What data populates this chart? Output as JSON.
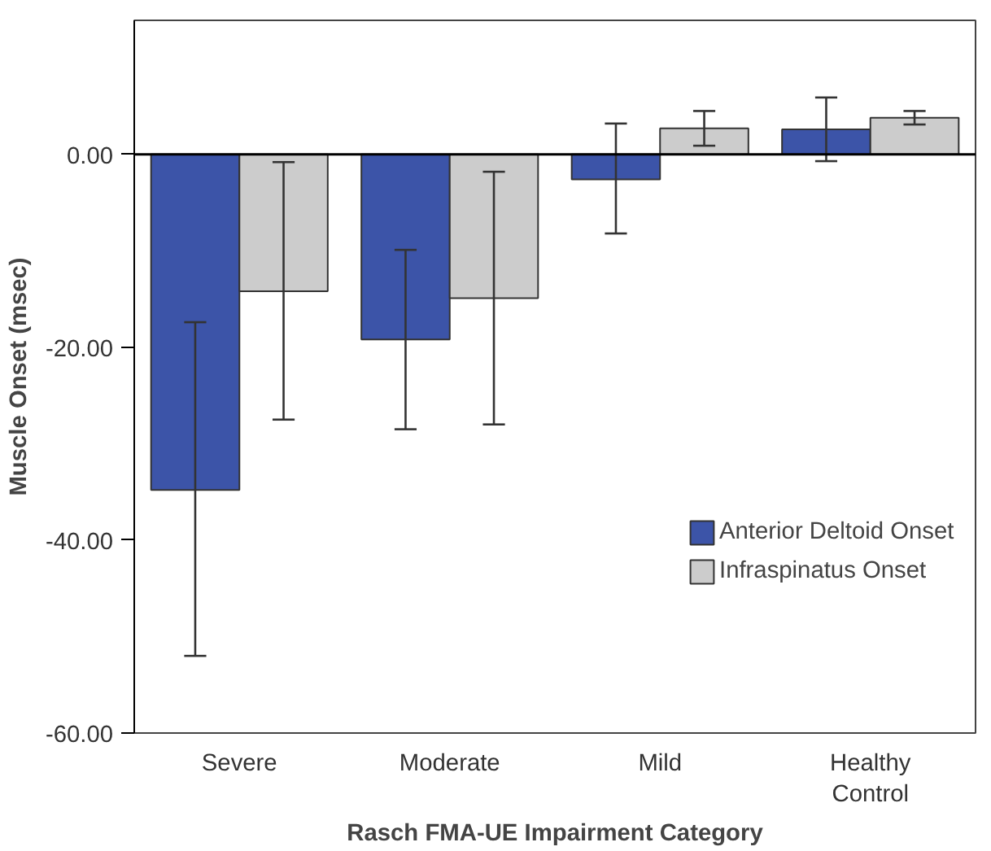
{
  "chart_data": {
    "type": "bar",
    "xlabel": "Rasch FMA-UE Impairment Category",
    "ylabel": "Muscle Onset (msec)",
    "categories": [
      "Severe",
      "Moderate",
      "Mild",
      "Healthy Control"
    ],
    "series": [
      {
        "name": "Anterior Deltoid Onset",
        "color": "#3c54a8",
        "values": [
          -34.8,
          -19.2,
          -2.6,
          2.6
        ],
        "errors": [
          [
            -52.0,
            -17.4
          ],
          [
            -28.5,
            -9.9
          ],
          [
            -8.2,
            3.2
          ],
          [
            -0.7,
            5.9
          ]
        ]
      },
      {
        "name": "Infraspinatus Onset",
        "color": "#cccccc",
        "values": [
          -14.2,
          -14.9,
          2.7,
          3.8
        ],
        "errors": [
          [
            -27.5,
            -0.8
          ],
          [
            -28.0,
            -1.8
          ],
          [
            0.9,
            4.5
          ],
          [
            3.1,
            4.5
          ]
        ]
      }
    ],
    "ylim": [
      -60,
      13.9
    ],
    "yticks": [
      {
        "value": -60,
        "label": "-60.00"
      },
      {
        "value": -40,
        "label": "-40.00"
      },
      {
        "value": -20,
        "label": "-20.00"
      },
      {
        "value": 0,
        "label": "0.00"
      }
    ],
    "ref_lines": [
      {
        "axis": "y",
        "value": 0,
        "color": "#000000"
      }
    ],
    "grid": false,
    "legend": "right"
  }
}
